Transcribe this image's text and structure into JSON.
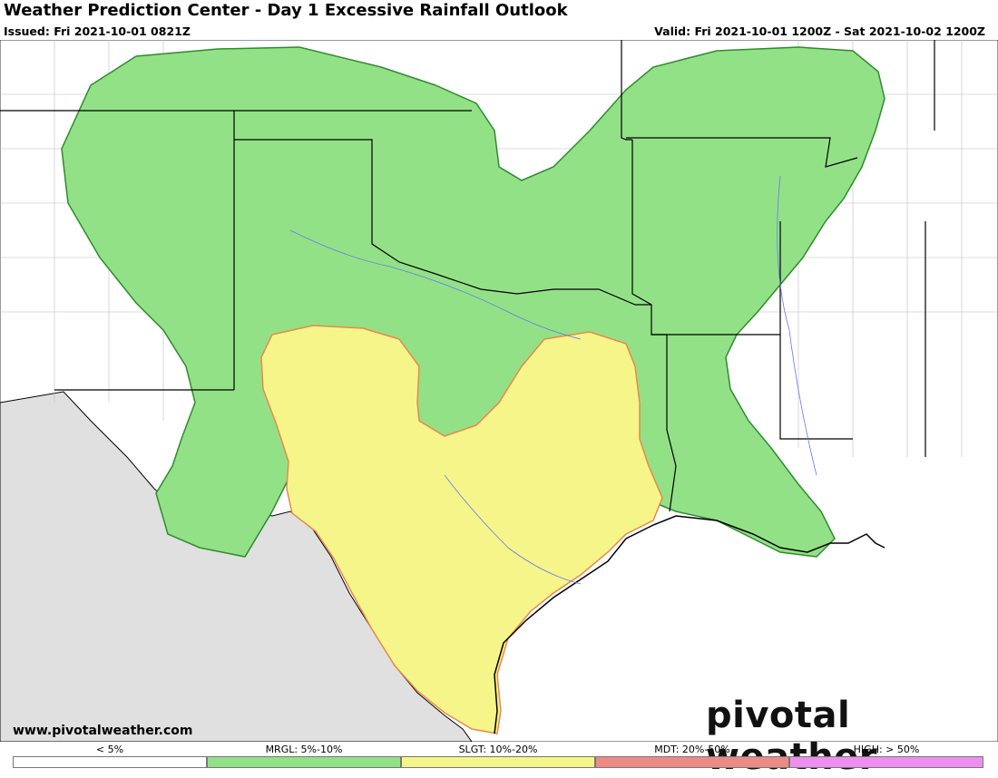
{
  "header": {
    "title": "Weather Prediction Center - Day 1 Excessive Rainfall Outlook",
    "issued": "Issued: Fri 2021-10-01 0821Z",
    "valid": "Valid: Fri 2021-10-01 1200Z - Sat 2021-10-02 1200Z"
  },
  "footer": {
    "website": "www.pivotalweather.com",
    "brand": "pivotal weather"
  },
  "legend": [
    {
      "label": "< 5%",
      "color": "#ffffff"
    },
    {
      "label": "MRGL: 5%-10%",
      "color": "#93e187"
    },
    {
      "label": "SLGT: 10%-20%",
      "color": "#f6f58a"
    },
    {
      "label": "MDT: 20%-50%",
      "color": "#ee8a84"
    },
    {
      "label": "HIGH: > 50%",
      "color": "#ee8ef0"
    }
  ],
  "map": {
    "areas": [
      {
        "category": "MRGL",
        "color": "#93e187"
      },
      {
        "category": "SLGT",
        "color": "#f6f58a"
      }
    ],
    "non_us_color": "#e0e0e0"
  }
}
